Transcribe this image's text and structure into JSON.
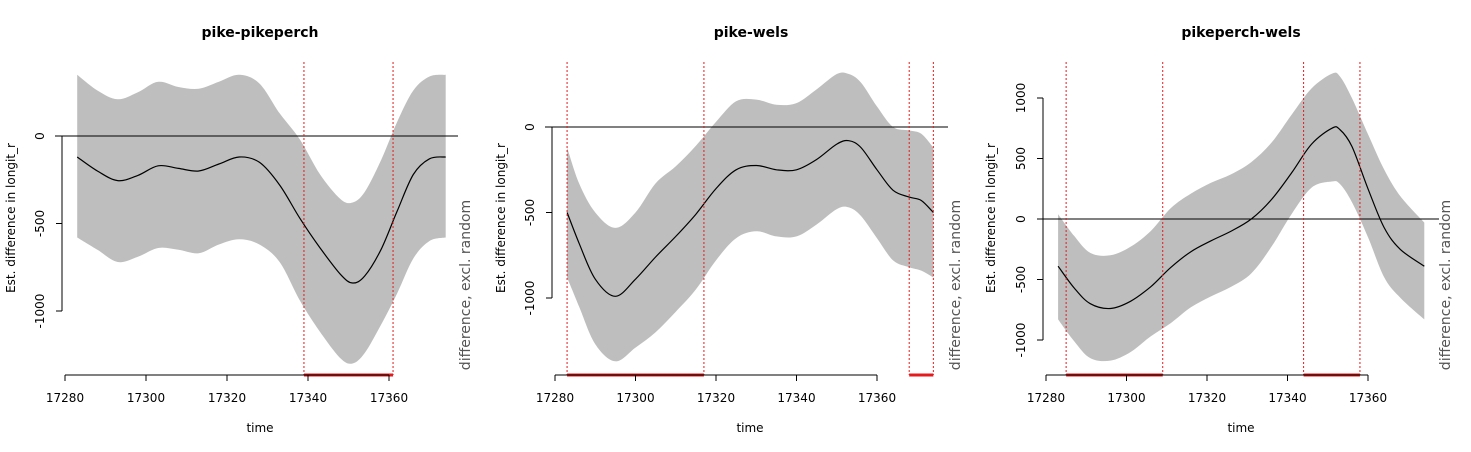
{
  "chart_data": [
    {
      "type": "line",
      "title": "pike-pikeperch",
      "xlabel": "time",
      "ylabel": "Est. difference in longit_r",
      "side_label": "difference, excl. random",
      "xlim": [
        17280,
        17375
      ],
      "ylim": [
        -1000,
        0
      ],
      "xticks": [
        17280,
        17300,
        17320,
        17340,
        17360
      ],
      "yticks": [
        0,
        -500,
        -1000
      ],
      "grid": false,
      "zero_line": true,
      "colors": {
        "band": "#bebebe",
        "line": "#000000",
        "significance": "#e41a1c"
      },
      "x": [
        17283,
        17288,
        17293,
        17298,
        17303,
        17308,
        17313,
        17318,
        17323,
        17328,
        17333,
        17338,
        17343,
        17348,
        17351,
        17354,
        17358,
        17362,
        17366,
        17370,
        17374
      ],
      "fit": [
        -120,
        -200,
        -255,
        -225,
        -170,
        -185,
        -200,
        -160,
        -120,
        -150,
        -280,
        -470,
        -640,
        -790,
        -840,
        -800,
        -650,
        -430,
        -220,
        -130,
        -120
      ],
      "upper": [
        350,
        260,
        210,
        250,
        310,
        280,
        270,
        310,
        350,
        300,
        130,
        -20,
        -220,
        -360,
        -380,
        -320,
        -140,
        80,
        260,
        340,
        350
      ],
      "lower": [
        -580,
        -650,
        -720,
        -690,
        -640,
        -650,
        -670,
        -620,
        -590,
        -620,
        -720,
        -940,
        -1120,
        -1270,
        -1300,
        -1240,
        -1080,
        -900,
        -700,
        -600,
        -580
      ],
      "sig_regions": [
        [
          17339,
          17361
        ]
      ]
    },
    {
      "type": "line",
      "title": "pike-wels",
      "xlabel": "time",
      "ylabel": "Est. difference in longit_r",
      "side_label": "difference, excl. random",
      "xlim": [
        17280,
        17375
      ],
      "ylim": [
        -1000,
        0
      ],
      "xticks": [
        17280,
        17300,
        17320,
        17340,
        17360
      ],
      "yticks": [
        0,
        -500,
        -1000
      ],
      "grid": false,
      "zero_line": true,
      "colors": {
        "band": "#bebebe",
        "line": "#000000",
        "significance": "#e41a1c"
      },
      "x": [
        17283,
        17286,
        17290,
        17295,
        17300,
        17305,
        17310,
        17315,
        17320,
        17325,
        17330,
        17335,
        17340,
        17345,
        17350,
        17353,
        17356,
        17360,
        17364,
        17368,
        17371,
        17374
      ],
      "fit": [
        -500,
        -680,
        -890,
        -990,
        -890,
        -760,
        -640,
        -510,
        -360,
        -250,
        -225,
        -250,
        -250,
        -190,
        -100,
        -80,
        -120,
        -250,
        -370,
        -410,
        -430,
        -500
      ],
      "upper": [
        -120,
        -330,
        -500,
        -590,
        -500,
        -330,
        -230,
        -110,
        30,
        150,
        160,
        130,
        140,
        220,
        310,
        310,
        260,
        120,
        0,
        -20,
        -40,
        -120
      ],
      "lower": [
        -880,
        -1050,
        -1270,
        -1370,
        -1290,
        -1200,
        -1080,
        -950,
        -780,
        -650,
        -610,
        -640,
        -640,
        -570,
        -480,
        -470,
        -520,
        -650,
        -780,
        -820,
        -840,
        -880
      ],
      "sig_regions": [
        [
          17283,
          17317
        ],
        [
          17368,
          17374
        ]
      ]
    },
    {
      "type": "line",
      "title": "pikeperch-wels",
      "xlabel": "time",
      "ylabel": "Est. difference in longit_r",
      "side_label": "difference, excl. random",
      "xlim": [
        17280,
        17375
      ],
      "ylim": [
        -1000,
        1000
      ],
      "xticks": [
        17280,
        17300,
        17320,
        17340,
        17360
      ],
      "yticks": [
        1000,
        500,
        0,
        -500,
        -1000
      ],
      "grid": false,
      "zero_line": true,
      "colors": {
        "band": "#bebebe",
        "line": "#000000",
        "significance": "#e41a1c"
      },
      "x": [
        17283,
        17287,
        17291,
        17296,
        17301,
        17306,
        17311,
        17316,
        17321,
        17326,
        17331,
        17336,
        17341,
        17346,
        17351,
        17353,
        17356,
        17360,
        17364,
        17368,
        17374
      ],
      "fit": [
        -390,
        -570,
        -700,
        -740,
        -680,
        -560,
        -400,
        -270,
        -180,
        -100,
        0,
        160,
        380,
        620,
        750,
        740,
        600,
        250,
        -70,
        -250,
        -390
      ],
      "upper": [
        40,
        -140,
        -280,
        -300,
        -230,
        -100,
        90,
        210,
        300,
        370,
        470,
        630,
        860,
        1080,
        1200,
        1180,
        1000,
        700,
        410,
        190,
        -30
      ],
      "lower": [
        -830,
        -1010,
        -1150,
        -1170,
        -1100,
        -970,
        -860,
        -730,
        -640,
        -560,
        -450,
        -230,
        40,
        260,
        310,
        290,
        140,
        -150,
        -480,
        -650,
        -830
      ],
      "sig_regions": [
        [
          17285,
          17309
        ],
        [
          17344,
          17358
        ]
      ]
    }
  ]
}
